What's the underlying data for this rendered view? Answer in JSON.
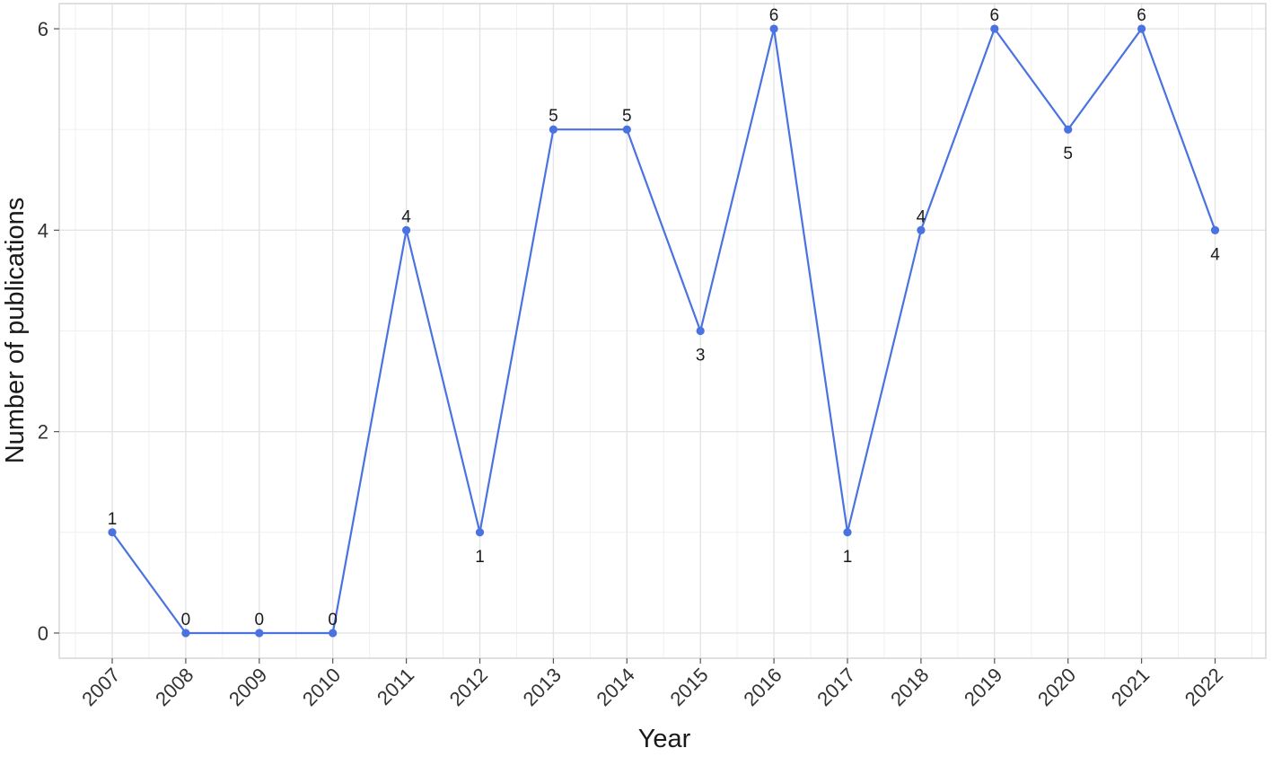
{
  "chart_data": {
    "type": "line",
    "title": "",
    "xlabel": "Year",
    "ylabel": "Number of publications",
    "x": [
      "2007",
      "2008",
      "2009",
      "2010",
      "2011",
      "2012",
      "2013",
      "2014",
      "2015",
      "2016",
      "2017",
      "2018",
      "2019",
      "2020",
      "2021",
      "2022"
    ],
    "series": [
      {
        "values": [
          1,
          0,
          0,
          0,
          4,
          1,
          5,
          5,
          3,
          6,
          1,
          4,
          6,
          5,
          6,
          4
        ],
        "color": "#4a72e0"
      }
    ],
    "data_labels": [
      "1",
      "0",
      "0",
      "0",
      "4",
      "1",
      "5",
      "5",
      "3",
      "6",
      "1",
      "4",
      "6",
      "5",
      "6",
      "4"
    ],
    "ylim": [
      -0.25,
      6.25
    ],
    "yticks": [
      0,
      2,
      4,
      6
    ],
    "grid": true,
    "legend": "none"
  }
}
